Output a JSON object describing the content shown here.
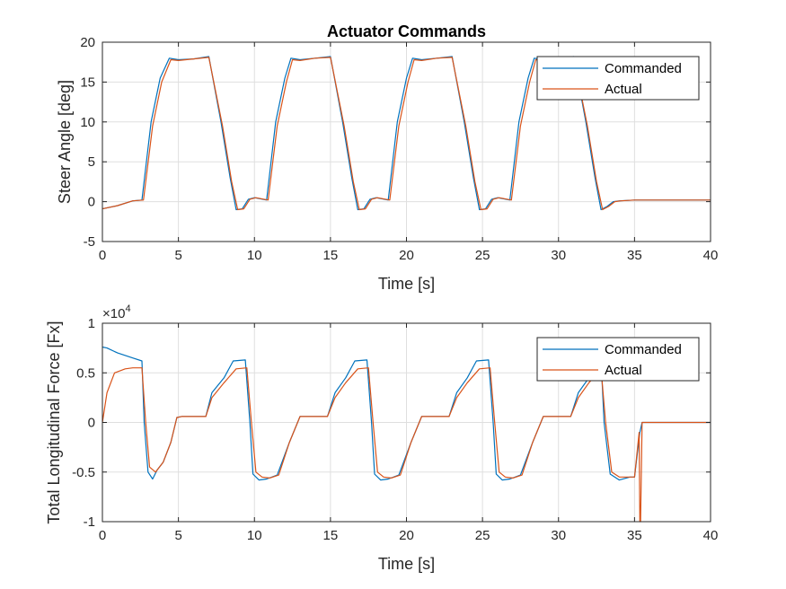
{
  "chart_data": [
    {
      "type": "line",
      "title": "Actuator Commands",
      "xlabel": "Time [s]",
      "ylabel": "Steer Angle [deg]",
      "xlim": [
        0,
        40
      ],
      "ylim": [
        -5,
        20
      ],
      "xticks": [
        "0",
        "5",
        "10",
        "15",
        "20",
        "25",
        "30",
        "35",
        "40"
      ],
      "yticks": [
        "-5",
        "0",
        "5",
        "10",
        "15",
        "20"
      ],
      "grid": true,
      "legend": "top-right",
      "series": [
        {
          "name": "Commanded",
          "color": "#0072BD",
          "x": [
            0,
            1,
            2,
            2.6,
            3.2,
            3.8,
            4.4,
            5,
            6,
            7,
            7.8,
            8.4,
            8.8,
            9.2,
            9.6,
            10,
            10.8,
            11.4,
            12,
            12.4,
            13,
            14,
            15,
            15.8,
            16.4,
            16.8,
            17.2,
            17.6,
            18,
            18.8,
            19.4,
            20,
            20.4,
            21,
            22,
            23,
            23.8,
            24.4,
            24.8,
            25.2,
            25.6,
            26,
            26.8,
            27.4,
            28,
            28.4,
            29,
            30,
            31,
            31.8,
            32.4,
            32.8,
            33.2,
            33.6,
            34,
            35,
            36,
            37,
            38,
            39,
            40
          ],
          "y": [
            -0.9,
            -0.5,
            0.1,
            0.2,
            10,
            15.5,
            18,
            17.8,
            17.9,
            18.2,
            10,
            3,
            -1,
            -0.9,
            0.3,
            0.5,
            0.2,
            10,
            15.5,
            18,
            17.8,
            18,
            18.2,
            10,
            3,
            -1,
            -0.9,
            0.3,
            0.5,
            0.2,
            10,
            15.5,
            18,
            17.8,
            18,
            18.2,
            10,
            3,
            -1,
            -0.9,
            0.3,
            0.5,
            0.2,
            10,
            15.5,
            18,
            17.8,
            18,
            18.2,
            10,
            3,
            -1,
            -0.6,
            0,
            0.1,
            0.2,
            0.2,
            0.2,
            0.2,
            0.2,
            0.2
          ]
        },
        {
          "name": "Actual",
          "color": "#D95319",
          "x": [
            0,
            1,
            2,
            2.7,
            3.3,
            3.9,
            4.5,
            5,
            6,
            7,
            7.9,
            8.5,
            8.9,
            9.3,
            9.7,
            10.1,
            10.9,
            11.5,
            12.1,
            12.5,
            13,
            14,
            15,
            15.9,
            16.5,
            16.9,
            17.3,
            17.7,
            18.1,
            18.9,
            19.5,
            20.1,
            20.5,
            21,
            22,
            23,
            23.9,
            24.5,
            24.9,
            25.3,
            25.7,
            26.1,
            26.9,
            27.5,
            28.1,
            28.5,
            29,
            30,
            31,
            31.9,
            32.5,
            32.9,
            33.3,
            33.7,
            34.1,
            35,
            36,
            37,
            38,
            39,
            40
          ],
          "y": [
            -0.9,
            -0.5,
            0.1,
            0.2,
            9.5,
            15,
            17.8,
            17.7,
            17.9,
            18.1,
            9.5,
            2.5,
            -1,
            -0.9,
            0.3,
            0.5,
            0.2,
            9.5,
            15,
            17.8,
            17.7,
            18,
            18.1,
            9.5,
            2.5,
            -1,
            -0.9,
            0.3,
            0.5,
            0.2,
            9.5,
            15,
            17.8,
            17.7,
            18,
            18.1,
            9.5,
            2.5,
            -1,
            -0.9,
            0.3,
            0.5,
            0.2,
            9.5,
            15,
            17.8,
            17.7,
            18,
            18.1,
            9.5,
            2.5,
            -1,
            -0.6,
            0,
            0.1,
            0.2,
            0.2,
            0.2,
            0.2,
            0.2,
            0.2
          ]
        }
      ]
    },
    {
      "type": "line",
      "title": "",
      "xlabel": "Time [s]",
      "ylabel": "Total Longitudinal Force [Fx]",
      "exponent_label": "×10",
      "exponent_power": "4",
      "xlim": [
        0,
        40
      ],
      "ylim": [
        -1,
        1
      ],
      "xticks": [
        "0",
        "5",
        "10",
        "15",
        "20",
        "25",
        "30",
        "35",
        "40"
      ],
      "yticks": [
        "-1",
        "-0.5",
        "0",
        "0.5",
        "1"
      ],
      "grid": true,
      "legend": "top-right",
      "series": [
        {
          "name": "Commanded",
          "color": "#0072BD",
          "x": [
            0,
            0.3,
            1,
            2,
            2.6,
            2.75,
            3.0,
            3.3,
            3.6,
            4,
            4.5,
            4.9,
            5.2,
            6,
            6.8,
            7.2,
            8,
            8.6,
            9.4,
            9.7,
            9.9,
            10.3,
            10.8,
            11.5,
            12.3,
            13,
            13.4,
            14,
            14.8,
            15.3,
            16,
            16.6,
            17.4,
            17.7,
            17.9,
            18.3,
            18.8,
            19.5,
            20.3,
            21,
            21.4,
            22,
            22.8,
            23.3,
            24,
            24.6,
            25.4,
            25.7,
            25.9,
            26.3,
            26.8,
            27.5,
            28.3,
            29,
            29.4,
            30,
            30.8,
            31.3,
            32,
            32.6,
            32.8,
            33,
            33.4,
            34,
            34.7,
            35,
            35.35,
            35.5,
            36,
            38,
            40
          ],
          "y": [
            0.76,
            0.75,
            0.7,
            0.65,
            0.62,
            0,
            -0.5,
            -0.57,
            -0.48,
            -0.4,
            -0.2,
            0.05,
            0.06,
            0.06,
            0.06,
            0.3,
            0.45,
            0.62,
            0.63,
            0,
            -0.52,
            -0.58,
            -0.57,
            -0.53,
            -0.2,
            0.06,
            0.06,
            0.06,
            0.06,
            0.3,
            0.45,
            0.62,
            0.63,
            0,
            -0.52,
            -0.58,
            -0.57,
            -0.53,
            -0.2,
            0.06,
            0.06,
            0.06,
            0.06,
            0.3,
            0.45,
            0.62,
            0.63,
            0,
            -0.52,
            -0.58,
            -0.57,
            -0.53,
            -0.2,
            0.06,
            0.06,
            0.06,
            0.06,
            0.3,
            0.45,
            0.62,
            0.63,
            0,
            -0.52,
            -0.58,
            -0.55,
            -0.55,
            -0.1,
            0,
            0,
            0,
            0
          ]
        },
        {
          "name": "Actual",
          "color": "#D95319",
          "x": [
            0,
            0.3,
            0.8,
            1.5,
            2,
            2.6,
            2.85,
            3.1,
            3.5,
            4,
            4.5,
            4.9,
            5.2,
            6,
            6.8,
            7.2,
            8,
            8.8,
            9.5,
            9.8,
            10.1,
            10.5,
            11,
            11.6,
            12.3,
            13,
            13.4,
            14,
            14.8,
            15.3,
            16,
            16.8,
            17.5,
            17.8,
            18.1,
            18.5,
            19,
            19.6,
            20.3,
            21,
            21.4,
            22,
            22.8,
            23.3,
            24,
            24.8,
            25.5,
            25.8,
            26.1,
            26.5,
            27,
            27.6,
            28.3,
            29,
            29.4,
            30,
            30.8,
            31.3,
            32,
            32.8,
            33.1,
            33.5,
            34,
            34.7,
            35,
            35.3,
            35.35,
            35.4,
            35.5,
            36,
            38,
            40
          ],
          "y": [
            0,
            0.3,
            0.5,
            0.54,
            0.55,
            0.55,
            0,
            -0.45,
            -0.5,
            -0.4,
            -0.2,
            0.05,
            0.06,
            0.06,
            0.06,
            0.25,
            0.4,
            0.54,
            0.55,
            0,
            -0.5,
            -0.55,
            -0.56,
            -0.53,
            -0.2,
            0.06,
            0.06,
            0.06,
            0.06,
            0.25,
            0.4,
            0.54,
            0.55,
            0,
            -0.5,
            -0.55,
            -0.56,
            -0.53,
            -0.2,
            0.06,
            0.06,
            0.06,
            0.06,
            0.25,
            0.4,
            0.54,
            0.55,
            0,
            -0.5,
            -0.55,
            -0.56,
            -0.53,
            -0.2,
            0.06,
            0.06,
            0.06,
            0.06,
            0.25,
            0.4,
            0.54,
            0,
            -0.5,
            -0.55,
            -0.55,
            -0.55,
            -0.1,
            -1,
            -1,
            0,
            0,
            0,
            0
          ]
        }
      ]
    }
  ]
}
